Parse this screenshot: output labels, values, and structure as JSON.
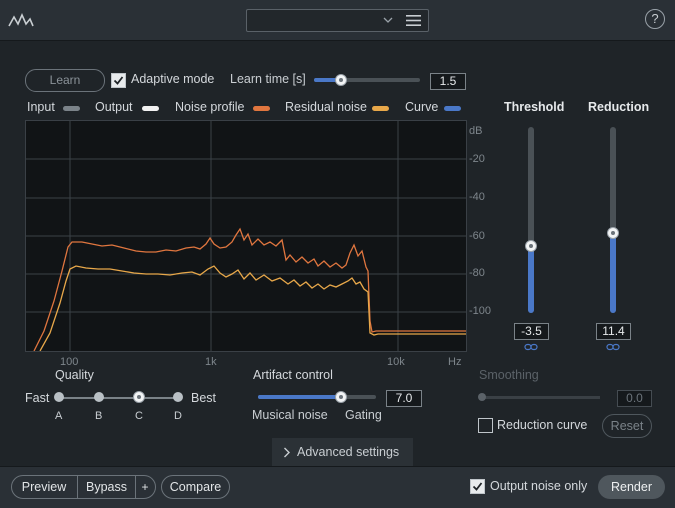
{
  "header": {
    "logo_icon": "waveform-logo-icon",
    "preset_value": "",
    "menu_icon": "hamburger-menu-icon",
    "help_label": "?"
  },
  "controls": {
    "learn_label": "Learn",
    "adaptive_mode_label": "Adaptive mode",
    "adaptive_mode_checked": true,
    "learn_time_label": "Learn time [s]",
    "learn_time_value": "1.5",
    "learn_time_fraction": 0.25
  },
  "legend": [
    {
      "label": "Input",
      "color": "#7b8389"
    },
    {
      "label": "Output",
      "color": "#f2f2f2"
    },
    {
      "label": "Noise profile",
      "color": "#e0763f"
    },
    {
      "label": "Residual noise",
      "color": "#e8a84a"
    },
    {
      "label": "Curve",
      "color": "#4a78c8"
    }
  ],
  "graph": {
    "y_ticks": [
      "dB",
      "-20",
      "-40",
      "-60",
      "-80",
      "-100"
    ],
    "x_ticks": [
      "100",
      "1k",
      "10k",
      "Hz"
    ]
  },
  "threshold": {
    "label": "Threshold",
    "value": "-3.5",
    "level": 0.36
  },
  "reduction": {
    "label": "Reduction",
    "value": "11.4",
    "level": 0.43
  },
  "quality": {
    "label": "Quality",
    "fast": "Fast",
    "best": "Best",
    "options": [
      "A",
      "B",
      "C",
      "D"
    ],
    "selected": "C"
  },
  "artifact": {
    "label": "Artifact control",
    "value": "7.0",
    "level": 0.7,
    "left_label": "Musical noise",
    "right_label": "Gating"
  },
  "smoothing": {
    "label": "Smoothing",
    "value": "0.0"
  },
  "reduction_curve": {
    "label": "Reduction curve",
    "checked": false,
    "reset_label": "Reset"
  },
  "advanced": {
    "label": "Advanced settings",
    "icon": "chevron-right-icon"
  },
  "footer": {
    "preview": "Preview",
    "bypass": "Bypass",
    "plus": "+",
    "compare": "Compare",
    "output_noise_only": "Output noise only",
    "output_noise_checked": true,
    "render": "Render"
  },
  "colors": {
    "accent_blue": "#4a78c8",
    "noise_orange": "#e0763f",
    "residual_orange": "#e8a84a"
  }
}
